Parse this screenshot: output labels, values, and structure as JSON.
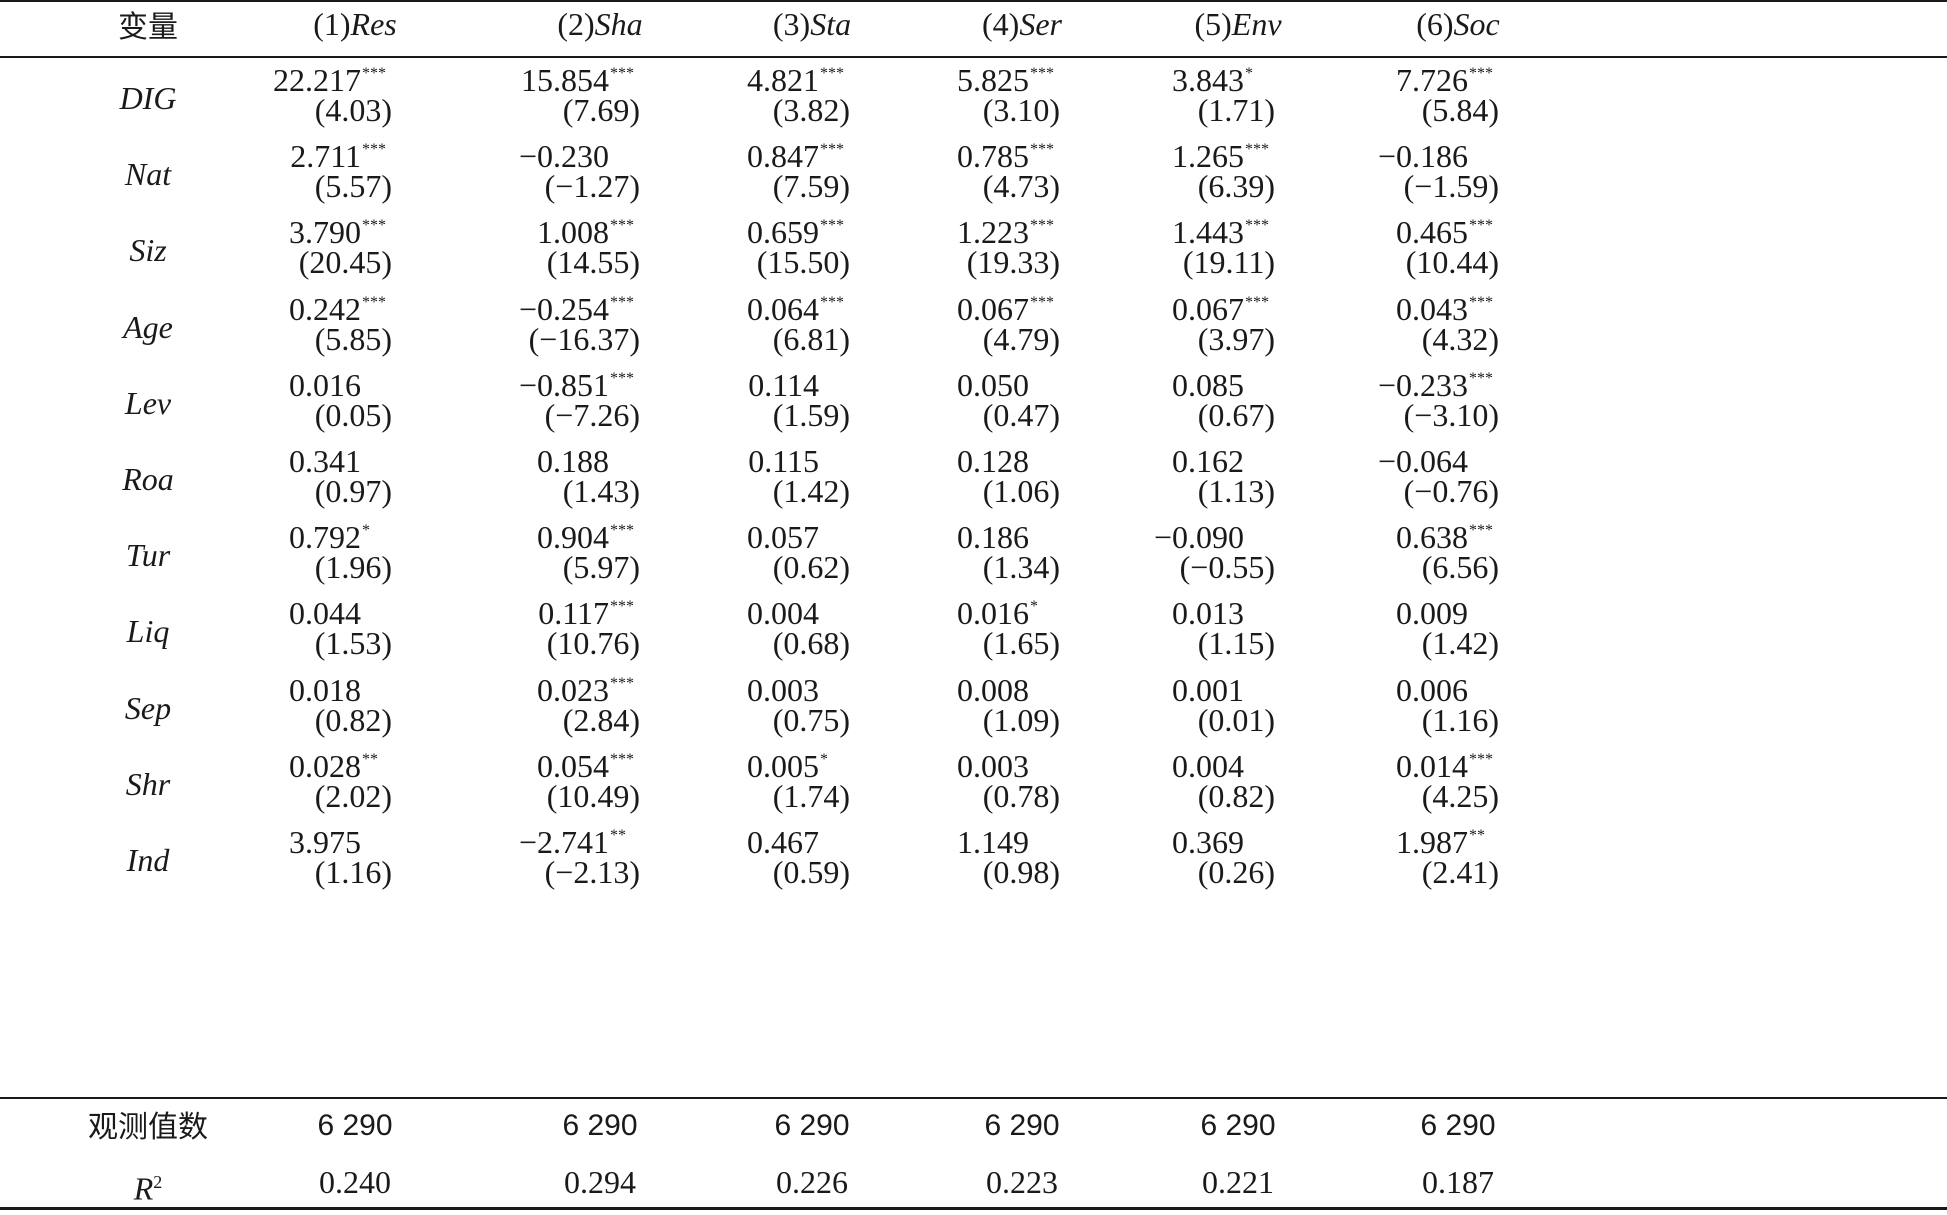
{
  "header": {
    "var_label": "变量",
    "columns": [
      {
        "num": "(1)",
        "name": "Res"
      },
      {
        "num": "(2)",
        "name": "Sha"
      },
      {
        "num": "(3)",
        "name": "Sta"
      },
      {
        "num": "(4)",
        "name": "Ser"
      },
      {
        "num": "(5)",
        "name": "Env"
      },
      {
        "num": "(6)",
        "name": "Soc"
      }
    ]
  },
  "rows": [
    {
      "name": "DIG",
      "cells": [
        {
          "coef": "22.217",
          "stars": "***",
          "se": "(4.03)"
        },
        {
          "coef": "15.854",
          "stars": "***",
          "se": "(7.69)"
        },
        {
          "coef": "4.821",
          "stars": "***",
          "se": "(3.82)"
        },
        {
          "coef": "5.825",
          "stars": "***",
          "se": "(3.10)"
        },
        {
          "coef": "3.843",
          "stars": "*",
          "se": "(1.71)"
        },
        {
          "coef": "7.726",
          "stars": "***",
          "se": "(5.84)"
        }
      ]
    },
    {
      "name": "Nat",
      "cells": [
        {
          "coef": "2.711",
          "stars": "***",
          "se": "(5.57)"
        },
        {
          "coef": "−0.230",
          "stars": "",
          "se": "(−1.27)"
        },
        {
          "coef": "0.847",
          "stars": "***",
          "se": "(7.59)"
        },
        {
          "coef": "0.785",
          "stars": "***",
          "se": "(4.73)"
        },
        {
          "coef": "1.265",
          "stars": "***",
          "se": "(6.39)"
        },
        {
          "coef": "−0.186",
          "stars": "",
          "se": "(−1.59)"
        }
      ]
    },
    {
      "name": "Siz",
      "cells": [
        {
          "coef": "3.790",
          "stars": "***",
          "se": "(20.45)"
        },
        {
          "coef": "1.008",
          "stars": "***",
          "se": "(14.55)"
        },
        {
          "coef": "0.659",
          "stars": "***",
          "se": "(15.50)"
        },
        {
          "coef": "1.223",
          "stars": "***",
          "se": "(19.33)"
        },
        {
          "coef": "1.443",
          "stars": "***",
          "se": "(19.11)"
        },
        {
          "coef": "0.465",
          "stars": "***",
          "se": "(10.44)"
        }
      ]
    },
    {
      "name": "Age",
      "cells": [
        {
          "coef": "0.242",
          "stars": "***",
          "se": "(5.85)"
        },
        {
          "coef": "−0.254",
          "stars": "***",
          "se": "(−16.37)"
        },
        {
          "coef": "0.064",
          "stars": "***",
          "se": "(6.81)"
        },
        {
          "coef": "0.067",
          "stars": "***",
          "se": "(4.79)"
        },
        {
          "coef": "0.067",
          "stars": "***",
          "se": "(3.97)"
        },
        {
          "coef": "0.043",
          "stars": "***",
          "se": "(4.32)"
        }
      ]
    },
    {
      "name": "Lev",
      "cells": [
        {
          "coef": "0.016",
          "stars": "",
          "se": "(0.05)"
        },
        {
          "coef": "−0.851",
          "stars": "***",
          "se": "(−7.26)"
        },
        {
          "coef": "0.114",
          "stars": "",
          "se": "(1.59)"
        },
        {
          "coef": "0.050",
          "stars": "",
          "se": "(0.47)"
        },
        {
          "coef": "0.085",
          "stars": "",
          "se": "(0.67)"
        },
        {
          "coef": "−0.233",
          "stars": "***",
          "se": "(−3.10)"
        }
      ]
    },
    {
      "name": "Roa",
      "cells": [
        {
          "coef": "0.341",
          "stars": "",
          "se": "(0.97)"
        },
        {
          "coef": "0.188",
          "stars": "",
          "se": "(1.43)"
        },
        {
          "coef": "0.115",
          "stars": "",
          "se": "(1.42)"
        },
        {
          "coef": "0.128",
          "stars": "",
          "se": "(1.06)"
        },
        {
          "coef": "0.162",
          "stars": "",
          "se": "(1.13)"
        },
        {
          "coef": "−0.064",
          "stars": "",
          "se": "(−0.76)"
        }
      ]
    },
    {
      "name": "Tur",
      "cells": [
        {
          "coef": "0.792",
          "stars": "*",
          "se": "(1.96)"
        },
        {
          "coef": "0.904",
          "stars": "***",
          "se": "(5.97)"
        },
        {
          "coef": "0.057",
          "stars": "",
          "se": "(0.62)"
        },
        {
          "coef": "0.186",
          "stars": "",
          "se": "(1.34)"
        },
        {
          "coef": "−0.090",
          "stars": "",
          "se": "(−0.55)"
        },
        {
          "coef": "0.638",
          "stars": "***",
          "se": "(6.56)"
        }
      ]
    },
    {
      "name": "Liq",
      "cells": [
        {
          "coef": "0.044",
          "stars": "",
          "se": "(1.53)"
        },
        {
          "coef": "0.117",
          "stars": "***",
          "se": "(10.76)"
        },
        {
          "coef": "0.004",
          "stars": "",
          "se": "(0.68)"
        },
        {
          "coef": "0.016",
          "stars": "*",
          "se": "(1.65)"
        },
        {
          "coef": "0.013",
          "stars": "",
          "se": "(1.15)"
        },
        {
          "coef": "0.009",
          "stars": "",
          "se": "(1.42)"
        }
      ]
    },
    {
      "name": "Sep",
      "cells": [
        {
          "coef": "0.018",
          "stars": "",
          "se": "(0.82)"
        },
        {
          "coef": "0.023",
          "stars": "***",
          "se": "(2.84)"
        },
        {
          "coef": "0.003",
          "stars": "",
          "se": "(0.75)"
        },
        {
          "coef": "0.008",
          "stars": "",
          "se": "(1.09)"
        },
        {
          "coef": "0.001",
          "stars": "",
          "se": "(0.01)"
        },
        {
          "coef": "0.006",
          "stars": "",
          "se": "(1.16)"
        }
      ]
    },
    {
      "name": "Shr",
      "cells": [
        {
          "coef": "0.028",
          "stars": "**",
          "se": "(2.02)"
        },
        {
          "coef": "0.054",
          "stars": "***",
          "se": "(10.49)"
        },
        {
          "coef": "0.005",
          "stars": "*",
          "se": "(1.74)"
        },
        {
          "coef": "0.003",
          "stars": "",
          "se": "(0.78)"
        },
        {
          "coef": "0.004",
          "stars": "",
          "se": "(0.82)"
        },
        {
          "coef": "0.014",
          "stars": "***",
          "se": "(4.25)"
        }
      ]
    },
    {
      "name": "Ind",
      "cells": [
        {
          "coef": "3.975",
          "stars": "",
          "se": "(1.16)"
        },
        {
          "coef": "−2.741",
          "stars": "**",
          "se": "(−2.13)"
        },
        {
          "coef": "0.467",
          "stars": "",
          "se": "(0.59)"
        },
        {
          "coef": "1.149",
          "stars": "",
          "se": "(0.98)"
        },
        {
          "coef": "0.369",
          "stars": "",
          "se": "(0.26)"
        },
        {
          "coef": "1.987",
          "stars": "**",
          "se": "(2.41)"
        }
      ]
    }
  ],
  "footer": {
    "obs_label": "观测值数",
    "obs": [
      "6 290",
      "6 290",
      "6 290",
      "6 290",
      "6 290",
      "6 290"
    ],
    "r2_label": "R",
    "r2_sup": "2",
    "r2": [
      "0.240",
      "0.294",
      "0.226",
      "0.223",
      "0.221",
      "0.187"
    ]
  }
}
